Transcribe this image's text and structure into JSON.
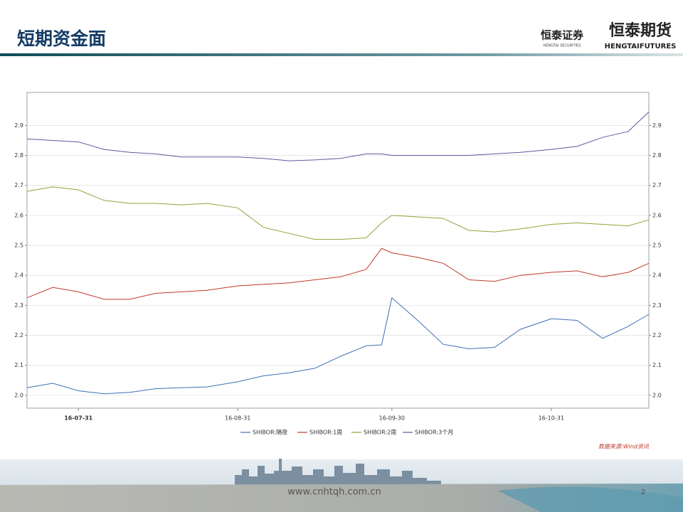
{
  "slide": {
    "title": "短期资金面",
    "logo1": "恒泰证券",
    "logo1_sub": "HENGTAI SECURITIES",
    "logo2": "恒泰期货",
    "logo2_sub": "HENGTAIFUTURES",
    "source": "数据来源:Wind资讯",
    "website": "www.cnhtqh.com.cn",
    "page": "2"
  },
  "chart_data": {
    "type": "line",
    "x": [
      "16-07-21",
      "16-07-26",
      "16-07-31",
      "16-08-05",
      "16-08-10",
      "16-08-15",
      "16-08-20",
      "16-08-25",
      "16-08-31",
      "16-09-05",
      "16-09-10",
      "16-09-15",
      "16-09-20",
      "16-09-25",
      "16-09-28",
      "16-09-30",
      "16-10-05",
      "16-10-10",
      "16-10-15",
      "16-10-20",
      "16-10-25",
      "16-10-31",
      "16-11-05",
      "16-11-10",
      "16-11-15",
      "16-11-19"
    ],
    "series": [
      {
        "name": "SHIBOR:隔夜",
        "color": "#3f6fb5",
        "values": [
          2.025,
          2.04,
          2.015,
          2.005,
          2.01,
          2.022,
          2.025,
          2.028,
          2.045,
          2.065,
          2.075,
          2.09,
          2.13,
          2.165,
          2.168,
          2.325,
          2.25,
          2.17,
          2.155,
          2.16,
          2.22,
          2.255,
          2.25,
          2.19,
          2.23,
          2.27
        ]
      },
      {
        "name": "SHIBOR:1周",
        "color": "#c0392b",
        "values": [
          2.325,
          2.36,
          2.345,
          2.32,
          2.32,
          2.34,
          2.345,
          2.35,
          2.365,
          2.37,
          2.375,
          2.385,
          2.395,
          2.42,
          2.49,
          2.475,
          2.46,
          2.44,
          2.385,
          2.38,
          2.4,
          2.41,
          2.415,
          2.395,
          2.41,
          2.44
        ]
      },
      {
        "name": "SHIBOR:2周",
        "color": "#8fa33a",
        "values": [
          2.68,
          2.695,
          2.685,
          2.65,
          2.64,
          2.64,
          2.635,
          2.64,
          2.625,
          2.56,
          2.54,
          2.52,
          2.52,
          2.525,
          2.575,
          2.6,
          2.595,
          2.59,
          2.55,
          2.545,
          2.555,
          2.57,
          2.575,
          2.57,
          2.565,
          2.585
        ]
      },
      {
        "name": "SHIBOR:3个月",
        "color": "#5a5aa0",
        "values": [
          2.855,
          2.85,
          2.845,
          2.82,
          2.81,
          2.805,
          2.795,
          2.795,
          2.795,
          2.79,
          2.782,
          2.785,
          2.79,
          2.805,
          2.805,
          2.8,
          2.8,
          2.8,
          2.8,
          2.805,
          2.81,
          2.82,
          2.83,
          2.86,
          2.88,
          2.945
        ]
      }
    ],
    "xlim": [
      "16-07-21",
      "16-11-19"
    ],
    "xticks": [
      "16-07-31",
      "16-08-31",
      "16-09-30",
      "16-10-31"
    ],
    "ylim": [
      1.957,
      3.01
    ],
    "yticks": [
      {
        "value": 2,
        "label": "2.0"
      },
      2.1,
      2.2,
      2.3,
      2.4,
      2.5,
      2.6,
      2.7,
      2.8,
      2.9
    ],
    "grid": true,
    "legend": "bottom"
  }
}
